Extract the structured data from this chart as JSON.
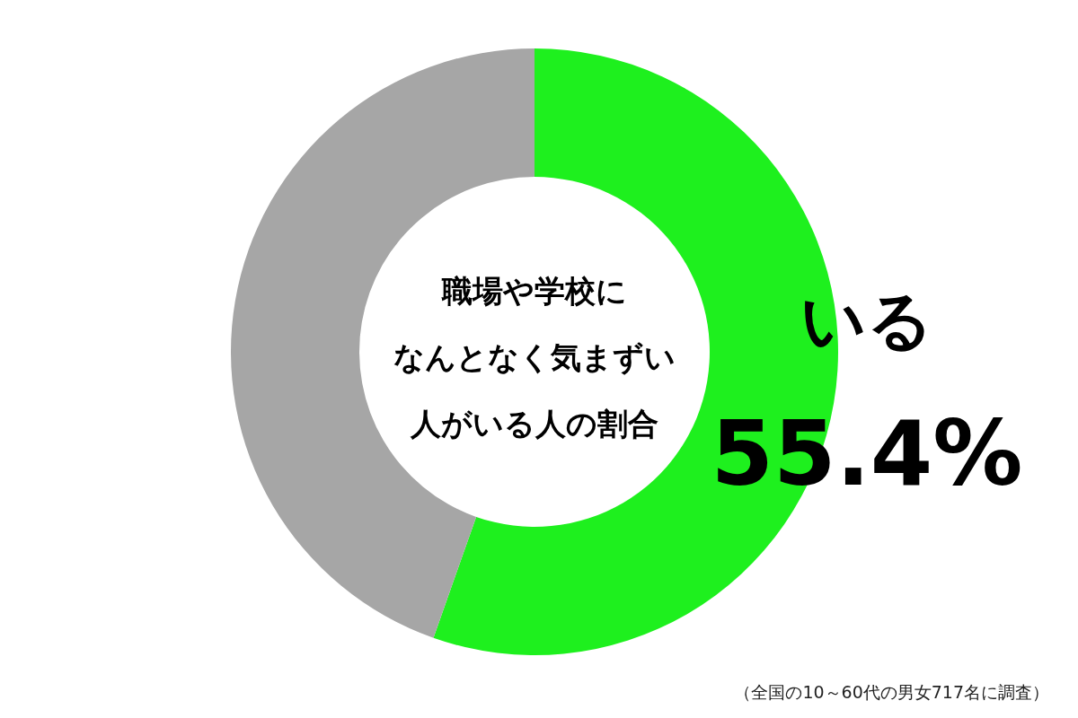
{
  "chart_data": {
    "type": "donut",
    "title": "職場や学校になんとなく気まずい人がいる人の割合",
    "categories": [
      "いる",
      null
    ],
    "values": [
      55.4,
      44.6
    ],
    "colors": [
      "#1ef01e",
      "#a6a6a6"
    ],
    "value_labels": [
      "55.4%",
      null
    ],
    "annotations": [
      "（全国の10～60代の男女717名に調査）"
    ]
  }
}
